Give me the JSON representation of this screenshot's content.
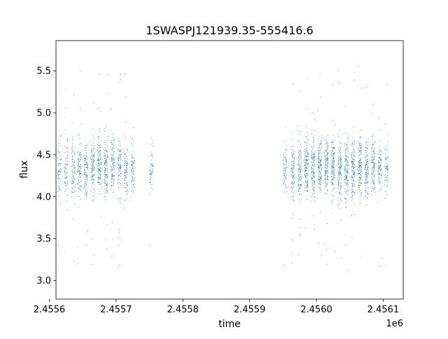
{
  "chart_data": {
    "type": "scatter",
    "title": "1SWASPJ121939.35-555416.6",
    "xlabel": "time",
    "ylabel": "flux",
    "x_offset_label": "1e6",
    "xlim": [
      2.45561,
      2.45613
    ],
    "ylim": [
      2.78,
      5.86
    ],
    "xticks": [
      2.4556,
      2.4557,
      2.4558,
      2.4559,
      2.456,
      2.4561
    ],
    "xtick_labels": [
      "2.4556",
      "2.4557",
      "2.4558",
      "2.4559",
      "2.4560",
      "2.4561"
    ],
    "yticks": [
      3.0,
      3.5,
      4.0,
      4.5,
      5.0,
      5.5
    ],
    "ytick_labels": [
      "3.0",
      "3.5",
      "4.0",
      "4.5",
      "5.0",
      "5.5"
    ],
    "grid": false,
    "legend": "none",
    "point_color": "#1f77b4",
    "series": [
      {
        "nights": [
          {
            "x": 2.455615,
            "mean": 4.32,
            "spread": 0.3,
            "n": 70
          },
          {
            "x": 2.455625,
            "mean": 4.35,
            "spread": 0.28,
            "n": 80
          },
          {
            "x": 2.455636,
            "mean": 4.36,
            "spread": 0.3,
            "n": 90
          },
          {
            "x": 2.455645,
            "mean": 4.33,
            "spread": 0.3,
            "n": 110
          },
          {
            "x": 2.455655,
            "mean": 4.32,
            "spread": 0.28,
            "n": 120
          },
          {
            "x": 2.455665,
            "mean": 4.35,
            "spread": 0.3,
            "n": 130
          },
          {
            "x": 2.455675,
            "mean": 4.38,
            "spread": 0.32,
            "n": 140
          },
          {
            "x": 2.455685,
            "mean": 4.33,
            "spread": 0.32,
            "n": 140
          },
          {
            "x": 2.455695,
            "mean": 4.36,
            "spread": 0.3,
            "n": 120
          },
          {
            "x": 2.455705,
            "mean": 4.35,
            "spread": 0.3,
            "n": 110
          },
          {
            "x": 2.455715,
            "mean": 4.32,
            "spread": 0.3,
            "n": 100
          },
          {
            "x": 2.455725,
            "mean": 4.34,
            "spread": 0.28,
            "n": 80
          },
          {
            "x": 2.455753,
            "mean": 4.36,
            "spread": 0.3,
            "n": 60
          },
          {
            "x": 2.455953,
            "mean": 4.33,
            "spread": 0.28,
            "n": 80
          },
          {
            "x": 2.455965,
            "mean": 4.32,
            "spread": 0.3,
            "n": 110
          },
          {
            "x": 2.455975,
            "mean": 4.34,
            "spread": 0.3,
            "n": 130
          },
          {
            "x": 2.455985,
            "mean": 4.35,
            "spread": 0.32,
            "n": 150
          },
          {
            "x": 2.455995,
            "mean": 4.33,
            "spread": 0.32,
            "n": 160
          },
          {
            "x": 2.456005,
            "mean": 4.36,
            "spread": 0.3,
            "n": 160
          },
          {
            "x": 2.456015,
            "mean": 4.34,
            "spread": 0.3,
            "n": 150
          },
          {
            "x": 2.456025,
            "mean": 4.35,
            "spread": 0.3,
            "n": 150
          },
          {
            "x": 2.456035,
            "mean": 4.33,
            "spread": 0.32,
            "n": 150
          },
          {
            "x": 2.456045,
            "mean": 4.3,
            "spread": 0.34,
            "n": 150
          },
          {
            "x": 2.456055,
            "mean": 4.32,
            "spread": 0.34,
            "n": 150
          },
          {
            "x": 2.456065,
            "mean": 4.35,
            "spread": 0.32,
            "n": 150
          },
          {
            "x": 2.456075,
            "mean": 4.33,
            "spread": 0.3,
            "n": 140
          },
          {
            "x": 2.456085,
            "mean": 4.36,
            "spread": 0.3,
            "n": 120
          },
          {
            "x": 2.456095,
            "mean": 4.34,
            "spread": 0.28,
            "n": 100
          },
          {
            "x": 2.456105,
            "mean": 4.35,
            "spread": 0.28,
            "n": 70
          }
        ]
      }
    ]
  }
}
